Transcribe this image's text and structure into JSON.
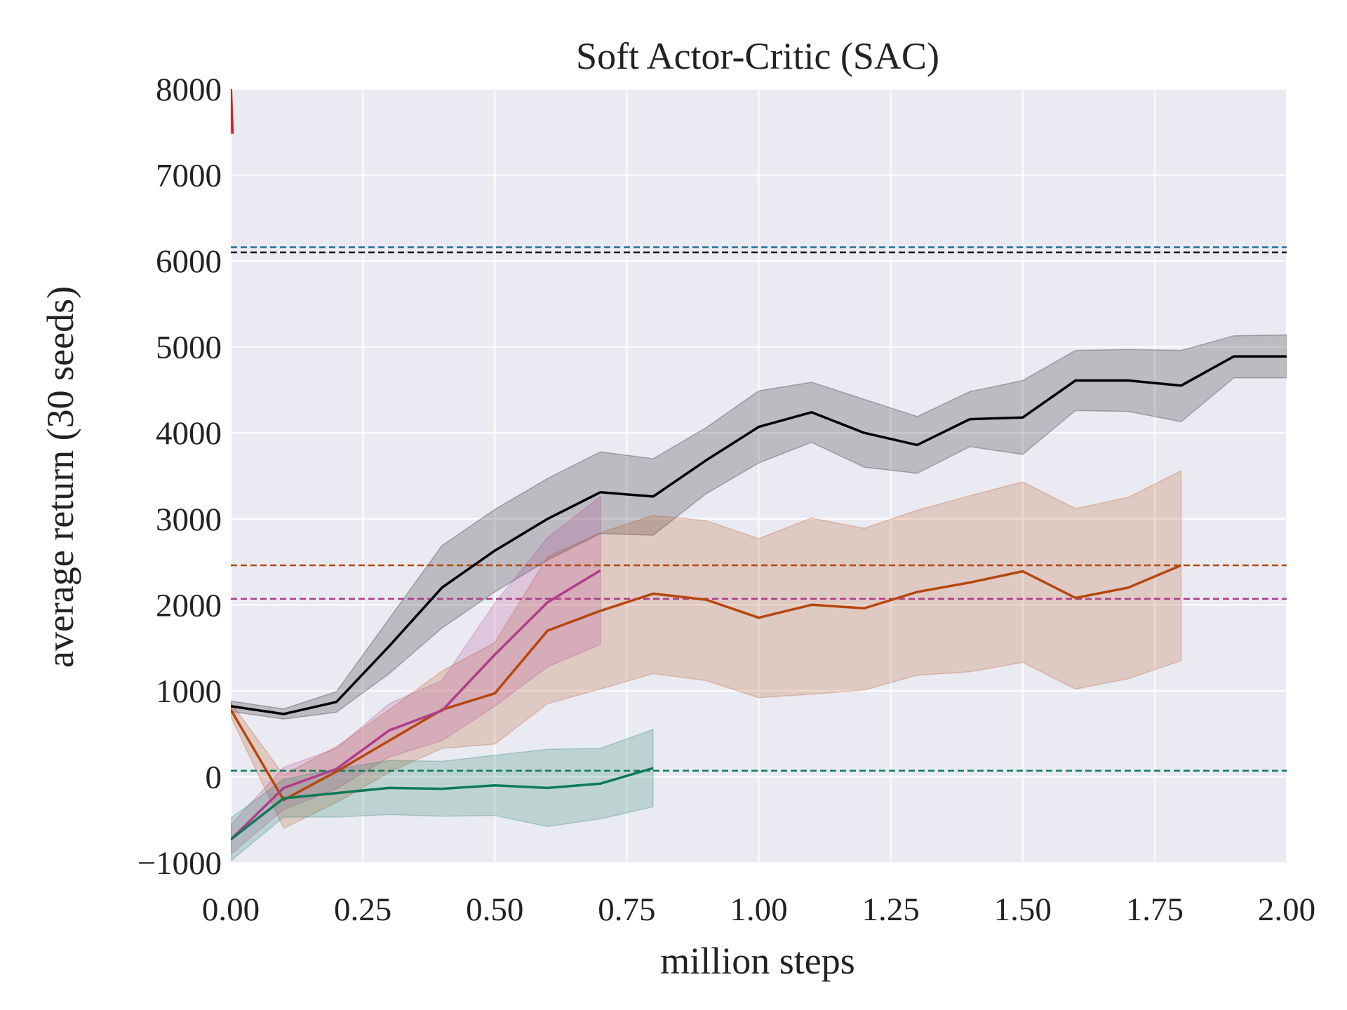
{
  "chart_data": {
    "type": "line",
    "title": "Soft Actor-Critic (SAC)",
    "xlabel": "million steps",
    "ylabel": "average return (30 seeds)",
    "xlim": [
      0,
      2.0
    ],
    "ylim": [
      -1000,
      8000
    ],
    "xticks": [
      "0.00",
      "0.25",
      "0.50",
      "0.75",
      "1.00",
      "1.25",
      "1.50",
      "1.75",
      "2.00"
    ],
    "xtick_values": [
      0,
      0.25,
      0.5,
      0.75,
      1.0,
      1.25,
      1.5,
      1.75,
      2.0
    ],
    "yticks": [
      "−1000",
      "0",
      "1000",
      "2000",
      "3000",
      "4000",
      "5000",
      "6000",
      "7000",
      "8000"
    ],
    "ytick_values": [
      -1000,
      0,
      1000,
      2000,
      3000,
      4000,
      5000,
      6000,
      7000,
      8000
    ],
    "grid": true,
    "background": "#eaeaf2",
    "series": [
      {
        "color": "#000000",
        "x": [
          0,
          0.1,
          0.2,
          0.3,
          0.4,
          0.5,
          0.6,
          0.7,
          0.8,
          0.9,
          1.0,
          1.1,
          1.2,
          1.3,
          1.4,
          1.5,
          1.6,
          1.7,
          1.8,
          1.9,
          2.0
        ],
        "y": [
          820,
          730,
          870,
          1520,
          2200,
          2630,
          3000,
          3310,
          3260,
          3680,
          4070,
          4240,
          4000,
          3860,
          4160,
          4180,
          4610,
          4610,
          4550,
          4890,
          4890
        ],
        "lower": [
          760,
          670,
          750,
          1200,
          1730,
          2150,
          2520,
          2830,
          2810,
          3290,
          3650,
          3890,
          3600,
          3530,
          3840,
          3750,
          4260,
          4250,
          4130,
          4640,
          4640
        ],
        "upper": [
          880,
          790,
          990,
          1840,
          2690,
          3110,
          3470,
          3780,
          3700,
          4060,
          4490,
          4590,
          4390,
          4190,
          4480,
          4610,
          4960,
          4970,
          4960,
          5130,
          5140
        ]
      },
      {
        "color": "#b5470b",
        "x": [
          0,
          0.1,
          0.2,
          0.3,
          0.4,
          0.5,
          0.6,
          0.7,
          0.8,
          0.9,
          1.0,
          1.1,
          1.2,
          1.3,
          1.4,
          1.5,
          1.6,
          1.7,
          1.8
        ],
        "y": [
          780,
          -270,
          60,
          420,
          780,
          970,
          1700,
          1930,
          2130,
          2060,
          1850,
          2000,
          1960,
          2150,
          2260,
          2390,
          2080,
          2200,
          2460
        ],
        "lower": [
          700,
          -600,
          -300,
          50,
          330,
          380,
          850,
          1020,
          1200,
          1120,
          920,
          960,
          1010,
          1180,
          1220,
          1330,
          1020,
          1140,
          1350
        ],
        "upper": [
          860,
          20,
          350,
          780,
          1230,
          1560,
          2560,
          2840,
          3040,
          2980,
          2770,
          3010,
          2890,
          3100,
          3270,
          3430,
          3120,
          3250,
          3560
        ]
      },
      {
        "color": "#b03c8c",
        "x": [
          0,
          0.1,
          0.2,
          0.3,
          0.4,
          0.5,
          0.6,
          0.7
        ],
        "y": [
          -730,
          -130,
          90,
          540,
          770,
          1420,
          2030,
          2400
        ],
        "lower": [
          -900,
          -380,
          -140,
          230,
          420,
          820,
          1280,
          1540
        ],
        "upper": [
          -560,
          110,
          330,
          850,
          1120,
          2020,
          2780,
          3260
        ]
      },
      {
        "color": "#0b7a57",
        "x": [
          0,
          0.1,
          0.2,
          0.3,
          0.4,
          0.5,
          0.6,
          0.7,
          0.8
        ],
        "y": [
          -730,
          -250,
          -190,
          -130,
          -140,
          -100,
          -130,
          -80,
          100
        ],
        "lower": [
          -980,
          -470,
          -470,
          -440,
          -460,
          -450,
          -580,
          -490,
          -350
        ],
        "upper": [
          -480,
          -30,
          90,
          190,
          180,
          250,
          320,
          330,
          550
        ]
      },
      {
        "color": "#e8181e",
        "x": [
          0,
          0.003
        ],
        "y": [
          8000,
          7480
        ]
      }
    ],
    "reference_lines": [
      {
        "color": "#1f6f9f",
        "y": 6160
      },
      {
        "color": "#000000",
        "y": 6100
      },
      {
        "color": "#b5470b",
        "y": 2460
      },
      {
        "color": "#b03c8c",
        "y": 2070
      },
      {
        "color": "#0b7a57",
        "y": 70
      }
    ]
  }
}
